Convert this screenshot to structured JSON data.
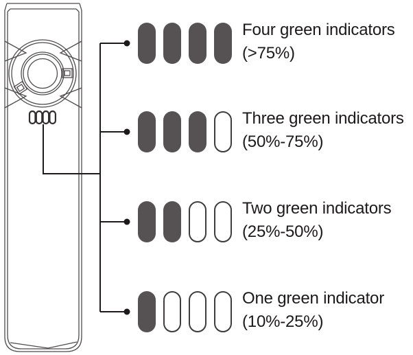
{
  "diagram": {
    "device": {
      "type": "handheld remote illustration",
      "led_count": 4
    },
    "legend_rows": [
      {
        "filled": 4,
        "total": 4,
        "label": "Four green indicators",
        "range": "(>75%)"
      },
      {
        "filled": 3,
        "total": 4,
        "label": "Three green indicators",
        "range": "(50%-75%)"
      },
      {
        "filled": 2,
        "total": 4,
        "label": "Two green indicators",
        "range": "(25%-50%)"
      },
      {
        "filled": 1,
        "total": 4,
        "label": "One green indicator",
        "range": "(10%-25%)"
      }
    ],
    "colors": {
      "indicator_filled": "#565254",
      "indicator_empty_border": "#3e3c3d",
      "connector": "#1d1a1b",
      "text": "#1b191a",
      "device_outline": "#4d4b4c",
      "led_outline": "#2f2d2e",
      "background": "#ffffff"
    }
  }
}
